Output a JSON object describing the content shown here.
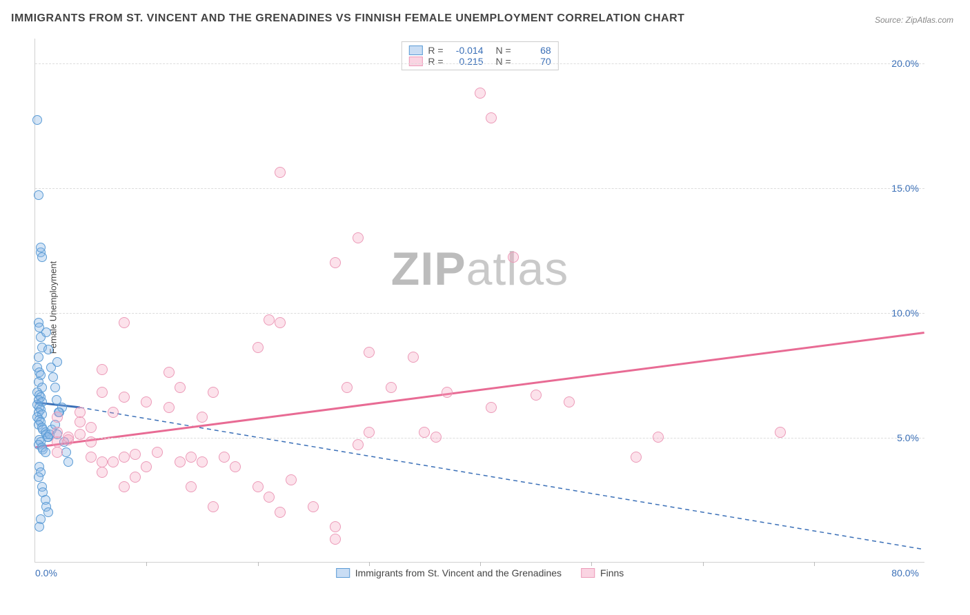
{
  "title": "IMMIGRANTS FROM ST. VINCENT AND THE GRENADINES VS FINNISH FEMALE UNEMPLOYMENT CORRELATION CHART",
  "source": "Source: ZipAtlas.com",
  "ylabel": "Female Unemployment",
  "watermark_a": "ZIP",
  "watermark_b": "atlas",
  "chart": {
    "type": "scatter",
    "xlim": [
      0,
      80
    ],
    "ylim": [
      0,
      21
    ],
    "yticks": [
      5,
      10,
      15,
      20
    ],
    "ytick_labels": [
      "5.0%",
      "10.0%",
      "15.0%",
      "20.0%"
    ],
    "xticks_major": [
      0,
      80
    ],
    "xtick_labels": [
      "0.0%",
      "80.0%"
    ],
    "xticks_minor": [
      10,
      20,
      30,
      40,
      50,
      60,
      70
    ],
    "grid_color": "#dcdcdc",
    "axis_color": "#d0d0d0",
    "bg": "#ffffff",
    "series": [
      {
        "name": "Immigrants from St. Vincent and the Grenadines",
        "color_fill": "rgba(135,180,230,0.35)",
        "color_stroke": "#5a9bd5",
        "marker_size": 14,
        "R": "-0.014",
        "N": "68",
        "trend": {
          "style": "solid_then_dashed",
          "color": "#3a6fb7",
          "width": 2,
          "x1": 0,
          "y1": 6.4,
          "x_break": 4,
          "y_break": 6.2,
          "x2": 80,
          "y2": 0.5
        },
        "points": [
          [
            0.2,
            17.7
          ],
          [
            0.3,
            14.7
          ],
          [
            0.5,
            12.4
          ],
          [
            0.6,
            12.2
          ],
          [
            0.5,
            12.6
          ],
          [
            0.3,
            9.6
          ],
          [
            0.4,
            9.4
          ],
          [
            0.5,
            9.0
          ],
          [
            0.6,
            8.6
          ],
          [
            0.3,
            8.2
          ],
          [
            0.2,
            7.8
          ],
          [
            0.4,
            7.6
          ],
          [
            0.5,
            7.5
          ],
          [
            0.3,
            7.2
          ],
          [
            0.6,
            7.0
          ],
          [
            0.2,
            6.8
          ],
          [
            0.4,
            6.7
          ],
          [
            0.5,
            6.6
          ],
          [
            0.3,
            6.5
          ],
          [
            0.6,
            6.4
          ],
          [
            0.2,
            6.3
          ],
          [
            0.4,
            6.2
          ],
          [
            0.5,
            6.1
          ],
          [
            0.3,
            6.0
          ],
          [
            0.6,
            5.9
          ],
          [
            0.2,
            5.8
          ],
          [
            0.4,
            5.7
          ],
          [
            0.5,
            5.6
          ],
          [
            0.3,
            5.5
          ],
          [
            0.6,
            5.4
          ],
          [
            0.7,
            5.3
          ],
          [
            0.9,
            5.2
          ],
          [
            1.0,
            5.1
          ],
          [
            1.2,
            5.0
          ],
          [
            0.4,
            4.9
          ],
          [
            0.5,
            4.8
          ],
          [
            0.3,
            4.7
          ],
          [
            0.6,
            4.6
          ],
          [
            0.7,
            4.5
          ],
          [
            0.9,
            4.4
          ],
          [
            1.1,
            5.0
          ],
          [
            1.3,
            5.1
          ],
          [
            1.5,
            5.3
          ],
          [
            1.8,
            5.5
          ],
          [
            2.0,
            5.1
          ],
          [
            2.2,
            6.0
          ],
          [
            2.4,
            6.2
          ],
          [
            2.6,
            4.8
          ],
          [
            2.8,
            4.4
          ],
          [
            3.0,
            4.0
          ],
          [
            0.4,
            3.8
          ],
          [
            0.5,
            3.6
          ],
          [
            0.3,
            3.4
          ],
          [
            0.6,
            3.0
          ],
          [
            0.7,
            2.8
          ],
          [
            0.9,
            2.5
          ],
          [
            1.0,
            2.2
          ],
          [
            1.2,
            2.0
          ],
          [
            0.5,
            1.7
          ],
          [
            0.4,
            1.4
          ],
          [
            1.0,
            9.2
          ],
          [
            1.2,
            8.5
          ],
          [
            1.4,
            7.8
          ],
          [
            1.6,
            7.4
          ],
          [
            1.8,
            7.0
          ],
          [
            2.0,
            8.0
          ],
          [
            1.9,
            6.5
          ],
          [
            2.1,
            6.0
          ]
        ]
      },
      {
        "name": "Finns",
        "color_fill": "rgba(244,160,190,0.3)",
        "color_stroke": "#ec9ab8",
        "marker_size": 16,
        "R": "0.215",
        "N": "70",
        "trend": {
          "style": "solid",
          "color": "#e86b94",
          "width": 3,
          "x1": 0,
          "y1": 4.6,
          "x2": 80,
          "y2": 9.2
        },
        "points": [
          [
            40,
            18.8
          ],
          [
            41,
            17.8
          ],
          [
            22,
            15.6
          ],
          [
            29,
            13.0
          ],
          [
            27,
            12.0
          ],
          [
            8,
            9.6
          ],
          [
            21,
            9.7
          ],
          [
            22,
            9.6
          ],
          [
            20,
            8.6
          ],
          [
            30,
            8.4
          ],
          [
            37,
            6.8
          ],
          [
            34,
            8.2
          ],
          [
            45,
            6.7
          ],
          [
            48,
            6.4
          ],
          [
            35,
            5.2
          ],
          [
            36,
            5.0
          ],
          [
            8,
            6.6
          ],
          [
            10,
            6.4
          ],
          [
            12,
            6.2
          ],
          [
            13,
            7.0
          ],
          [
            15,
            5.8
          ],
          [
            16,
            6.8
          ],
          [
            17,
            4.2
          ],
          [
            18,
            3.8
          ],
          [
            20,
            3.0
          ],
          [
            21,
            2.6
          ],
          [
            22,
            2.0
          ],
          [
            23,
            3.3
          ],
          [
            25,
            2.2
          ],
          [
            27,
            1.4
          ],
          [
            27,
            0.9
          ],
          [
            29,
            4.7
          ],
          [
            30,
            5.2
          ],
          [
            32,
            7.0
          ],
          [
            6,
            7.7
          ],
          [
            2,
            5.8
          ],
          [
            2,
            5.2
          ],
          [
            2,
            4.8
          ],
          [
            2,
            4.4
          ],
          [
            3,
            4.9
          ],
          [
            3,
            5.0
          ],
          [
            4,
            5.1
          ],
          [
            4,
            5.6
          ],
          [
            5,
            4.2
          ],
          [
            5,
            4.8
          ],
          [
            6,
            3.6
          ],
          [
            6,
            4.0
          ],
          [
            7,
            4.0
          ],
          [
            8,
            4.2
          ],
          [
            8,
            3.0
          ],
          [
            9,
            4.3
          ],
          [
            9,
            3.4
          ],
          [
            10,
            3.8
          ],
          [
            11,
            4.4
          ],
          [
            12,
            7.6
          ],
          [
            13,
            4.0
          ],
          [
            14,
            4.2
          ],
          [
            14,
            3.0
          ],
          [
            15,
            4.0
          ],
          [
            16,
            2.2
          ],
          [
            54,
            4.2
          ],
          [
            56,
            5.0
          ],
          [
            67,
            5.2
          ],
          [
            41,
            6.2
          ],
          [
            43,
            12.2
          ],
          [
            28,
            7.0
          ],
          [
            6,
            6.8
          ],
          [
            7,
            6.0
          ],
          [
            5,
            5.4
          ],
          [
            4,
            6.0
          ]
        ]
      }
    ]
  },
  "legend_top": [
    {
      "swatch": "b",
      "R_label": "R =",
      "R": "-0.014",
      "N_label": "N =",
      "N": "68"
    },
    {
      "swatch": "p",
      "R_label": "R =",
      "R": "0.215",
      "N_label": "N =",
      "N": "70"
    }
  ],
  "legend_bottom": [
    {
      "swatch": "b",
      "label": "Immigrants from St. Vincent and the Grenadines"
    },
    {
      "swatch": "p",
      "label": "Finns"
    }
  ]
}
